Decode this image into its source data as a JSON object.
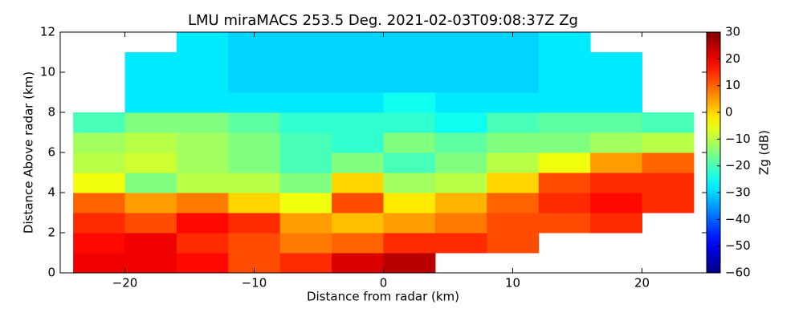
{
  "chart_data": {
    "type": "heatmap",
    "title": "LMU miraMACS 253.5 Deg. 2021-02-03T09:08:37Z  Zg",
    "x_label": "Distance from radar (km)",
    "y_label": "Distance Above radar  (km)",
    "colorbar_label": "Zg (dB)",
    "colormap": "jet",
    "xlim": [
      -25,
      25
    ],
    "ylim": [
      0,
      12
    ],
    "clim": [
      -60,
      30
    ],
    "xticks": [
      {
        "value": -20,
        "label": "−20"
      },
      {
        "value": -10,
        "label": "−10"
      },
      0,
      10,
      20
    ],
    "yticks": [
      0,
      2,
      4,
      6,
      8,
      10,
      12
    ],
    "cticks": [
      {
        "value": -60,
        "label": "−60"
      },
      {
        "value": -50,
        "label": "−50"
      },
      {
        "value": -40,
        "label": "−40"
      },
      {
        "value": -30,
        "label": "−30"
      },
      {
        "value": -20,
        "label": "−20"
      },
      {
        "value": -10,
        "label": "−10"
      },
      0,
      10,
      20,
      30
    ],
    "x_edges": [
      -24,
      -20,
      -16,
      -12,
      -8,
      -4,
      0,
      4,
      8,
      12,
      16,
      20,
      24
    ],
    "y_edges": [
      0,
      1,
      2,
      3,
      4,
      5,
      6,
      7,
      8,
      9,
      10,
      11,
      12
    ],
    "values": [
      [
        20,
        20,
        18,
        12,
        15,
        22,
        25,
        null,
        null,
        null,
        null,
        null
      ],
      [
        18,
        20,
        15,
        12,
        8,
        10,
        15,
        15,
        12,
        null,
        null,
        null
      ],
      [
        15,
        12,
        18,
        15,
        5,
        2,
        5,
        8,
        12,
        12,
        15,
        null
      ],
      [
        10,
        5,
        8,
        0,
        -5,
        12,
        -2,
        3,
        10,
        15,
        18,
        15
      ],
      [
        -5,
        -15,
        -10,
        -10,
        -15,
        0,
        -12,
        -10,
        0,
        12,
        15,
        15
      ],
      [
        -10,
        -8,
        -12,
        -15,
        -20,
        -15,
        -20,
        -15,
        -10,
        -5,
        5,
        10
      ],
      [
        -12,
        -10,
        -12,
        -15,
        -20,
        -22,
        -15,
        -18,
        -15,
        -15,
        -12,
        -10
      ],
      [
        -20,
        -15,
        -15,
        -18,
        -22,
        -22,
        -22,
        -25,
        -20,
        -18,
        -18,
        -20
      ],
      [
        null,
        -28,
        -28,
        -28,
        -28,
        -28,
        -25,
        -28,
        -28,
        -28,
        -28,
        null
      ],
      [
        null,
        -28,
        -28,
        -30,
        -30,
        -30,
        -30,
        -30,
        -30,
        -28,
        -28,
        null
      ],
      [
        null,
        -28,
        -28,
        -30,
        -30,
        -30,
        -30,
        -30,
        -30,
        -28,
        -28,
        null
      ],
      [
        null,
        null,
        -28,
        -30,
        -30,
        -30,
        -30,
        -30,
        -30,
        -28,
        null,
        null
      ]
    ]
  }
}
